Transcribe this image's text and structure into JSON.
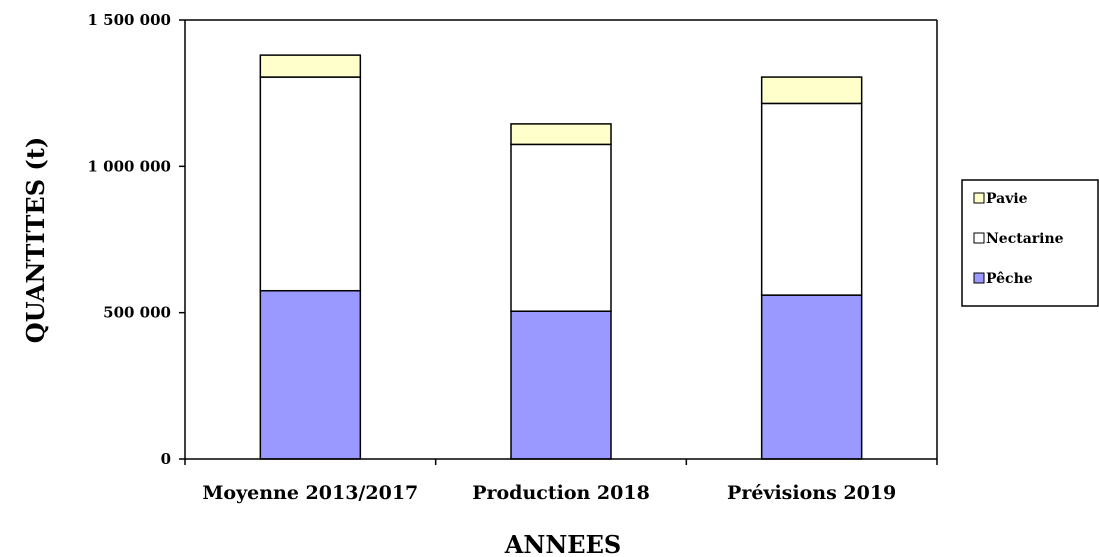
{
  "chart_data": {
    "type": "bar",
    "stacked": true,
    "categories": [
      "Moyenne 2013/2017",
      "Production 2018",
      "Prévisions 2019"
    ],
    "series": [
      {
        "name": "Pêche",
        "values": [
          575000,
          505000,
          560000
        ],
        "color": "#9999ff"
      },
      {
        "name": "Nectarine",
        "values": [
          730000,
          570000,
          655000
        ],
        "color": "#ffffff"
      },
      {
        "name": "Pavie",
        "values": [
          75000,
          70000,
          90000
        ],
        "color": "#ffffcc"
      }
    ],
    "xlabel": "ANNEES",
    "ylabel": "QUANTITES (t)",
    "ylim": [
      0,
      1500000
    ],
    "yticks": [
      {
        "value": 0,
        "label": "0"
      },
      {
        "value": 500000,
        "label": "500 000"
      },
      {
        "value": 1000000,
        "label": "1 000 000"
      },
      {
        "value": 1500000,
        "label": "1 500 000"
      }
    ],
    "legend_position": "right",
    "legend_order": [
      "Pavie",
      "Nectarine",
      "Pêche"
    ],
    "grid": false
  }
}
